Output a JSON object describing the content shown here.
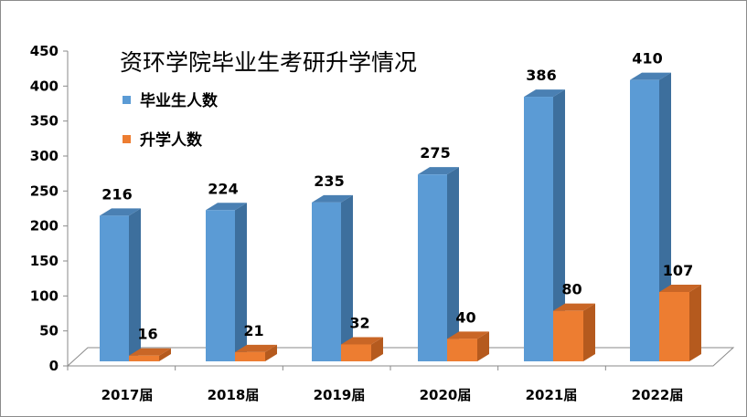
{
  "chart_data": {
    "type": "bar",
    "title": "资环学院毕业生考研升学情况",
    "categories": [
      "2017届",
      "2018届",
      "2019届",
      "2020届",
      "2021届",
      "2022届"
    ],
    "series": [
      {
        "name": "毕业生人数",
        "values": [
          216,
          224,
          235,
          275,
          386,
          410
        ],
        "color": "#5B9BD5"
      },
      {
        "name": "升学人数",
        "values": [
          16,
          21,
          32,
          40,
          80,
          107
        ],
        "color": "#ED7D31"
      }
    ],
    "ylim": [
      0,
      450
    ],
    "yticks": [
      "0",
      "50",
      "100",
      "150",
      "200",
      "250",
      "300",
      "350",
      "400",
      "450"
    ],
    "legend_position": "top-left",
    "grid": false
  }
}
